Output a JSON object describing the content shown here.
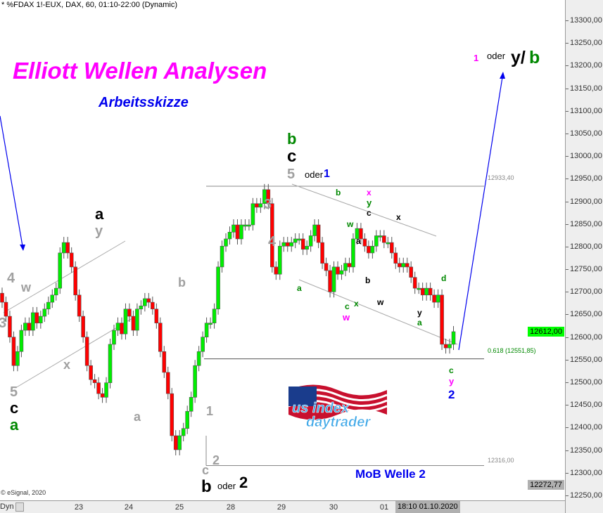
{
  "header": {
    "title": "* %FDAX 1!-EUX, DAX, 60, 01:10-22:00 (Dynamic)"
  },
  "annotations": {
    "main_title": "Elliott Wellen Analysen",
    "subtitle": "Arbeitsskizze",
    "target_1": "1",
    "target_oder": "oder",
    "target_y": "y/",
    "target_b": "b",
    "mob": "MoB Welle 2",
    "level_high": "12933,40",
    "level_fib": "0.618 (12551,85)",
    "level_low": "12316,00",
    "copyright": "© eSignal, 2020",
    "logo_text": "us index daytrader",
    "wave_labels": [
      {
        "t": "4",
        "c": "#a0a0a0"
      },
      {
        "t": "w",
        "c": "#a0a0a0"
      },
      {
        "t": "3",
        "c": "#a0a0a0"
      },
      {
        "t": "5",
        "c": "#a0a0a0"
      },
      {
        "t": "c",
        "c": "#000"
      },
      {
        "t": "a",
        "c": "#008800"
      },
      {
        "t": "x",
        "c": "#a0a0a0"
      },
      {
        "t": "a",
        "c": "#000"
      },
      {
        "t": "y",
        "c": "#a0a0a0"
      },
      {
        "t": "a",
        "c": "#a0a0a0"
      },
      {
        "t": "b",
        "c": "#a0a0a0"
      },
      {
        "t": "1",
        "c": "#a0a0a0"
      },
      {
        "t": "2",
        "c": "#a0a0a0"
      },
      {
        "t": "c",
        "c": "#a0a0a0"
      },
      {
        "t": "b",
        "c": "#000"
      },
      {
        "t": "oder",
        "c": "#000"
      },
      {
        "t": "2",
        "c": "#000"
      },
      {
        "t": "3",
        "c": "#a0a0a0"
      },
      {
        "t": "4",
        "c": "#a0a0a0"
      },
      {
        "t": "b",
        "c": "#008800"
      },
      {
        "t": "c",
        "c": "#000"
      },
      {
        "t": "5",
        "c": "#a0a0a0"
      },
      {
        "t": "oder",
        "c": "#000"
      },
      {
        "t": "1",
        "c": "#0000ee"
      },
      {
        "t": "a",
        "c": "#008800"
      },
      {
        "t": "b",
        "c": "#008800"
      },
      {
        "t": "w",
        "c": "#008800"
      },
      {
        "t": "c",
        "c": "#008800"
      },
      {
        "t": "w",
        "c": "#ff00ff"
      },
      {
        "t": "x",
        "c": "#008800"
      },
      {
        "t": "a",
        "c": "#000"
      },
      {
        "t": "b",
        "c": "#000"
      },
      {
        "t": "x",
        "c": "#ff00ff"
      },
      {
        "t": "y",
        "c": "#008800"
      },
      {
        "t": "c",
        "c": "#000"
      },
      {
        "t": "w",
        "c": "#000"
      },
      {
        "t": "x",
        "c": "#000"
      },
      {
        "t": "y",
        "c": "#000"
      },
      {
        "t": "a",
        "c": "#008800"
      },
      {
        "t": "d",
        "c": "#008800"
      },
      {
        "t": "c",
        "c": "#008800"
      },
      {
        "t": "y",
        "c": "#ff00ff"
      },
      {
        "t": "2",
        "c": "#0000ee"
      }
    ]
  },
  "colors": {
    "up": "#00ee00",
    "down": "#ff0000",
    "wick": "#555555",
    "arrow": "#0000ee",
    "fib": "#008800",
    "title": "#ff00ff",
    "subtitle": "#0000ee"
  },
  "chart_data": {
    "type": "candlestick",
    "ylim": [
      12250,
      13350
    ],
    "yticks": [
      "13300,00",
      "13250,00",
      "13200,00",
      "13150,00",
      "13100,00",
      "13050,00",
      "13000,00",
      "12950,00",
      "12900,00",
      "12850,00",
      "12800,00",
      "12750,00",
      "12700,00",
      "12650,00",
      "12600,00",
      "12550,00",
      "12500,00",
      "12450,00",
      "12400,00",
      "12350,00",
      "12300,00",
      "12250,00"
    ],
    "xticks": [
      "23",
      "24",
      "25",
      "28",
      "29",
      "30",
      "01"
    ],
    "cursor_time": "18:10 01.10.2020",
    "last_price": "12612,00",
    "cursor_price": "12272,77",
    "closes": [
      12677,
      12646,
      12600,
      12537,
      12568,
      12615,
      12631,
      12615,
      12654,
      12631,
      12646,
      12662,
      12677,
      12693,
      12708,
      12786,
      12809,
      12786,
      12755,
      12693,
      12646,
      12600,
      12537,
      12506,
      12499,
      12475,
      12467,
      12499,
      12584,
      12615,
      12631,
      12607,
      12662,
      12646,
      12615,
      12662,
      12669,
      12685,
      12677,
      12662,
      12631,
      12568,
      12522,
      12475,
      12382,
      12351,
      12382,
      12398,
      12436,
      12467,
      12537,
      12568,
      12600,
      12631,
      12631,
      12662,
      12755,
      12801,
      12817,
      12832,
      12848,
      12817,
      12848,
      12848,
      12848,
      12895,
      12887,
      12895,
      12926,
      12895,
      12755,
      12739,
      12801,
      12809,
      12801,
      12809,
      12817,
      12817,
      12794,
      12801,
      12824,
      12848,
      12809,
      12763,
      12747,
      12700,
      12755,
      12739,
      12747,
      12763,
      12755,
      12817,
      12840,
      12817,
      12801,
      12786,
      12801,
      12824,
      12824,
      12809,
      12809,
      12786,
      12763,
      12755,
      12763,
      12755,
      12732,
      12708,
      12708,
      12693,
      12708,
      12693,
      12677,
      12693,
      12584,
      12576,
      12584,
      12612
    ],
    "levels": [
      12933.4,
      12551.85,
      12316.0
    ]
  },
  "toolbar": {
    "dyn": "Dyn"
  }
}
